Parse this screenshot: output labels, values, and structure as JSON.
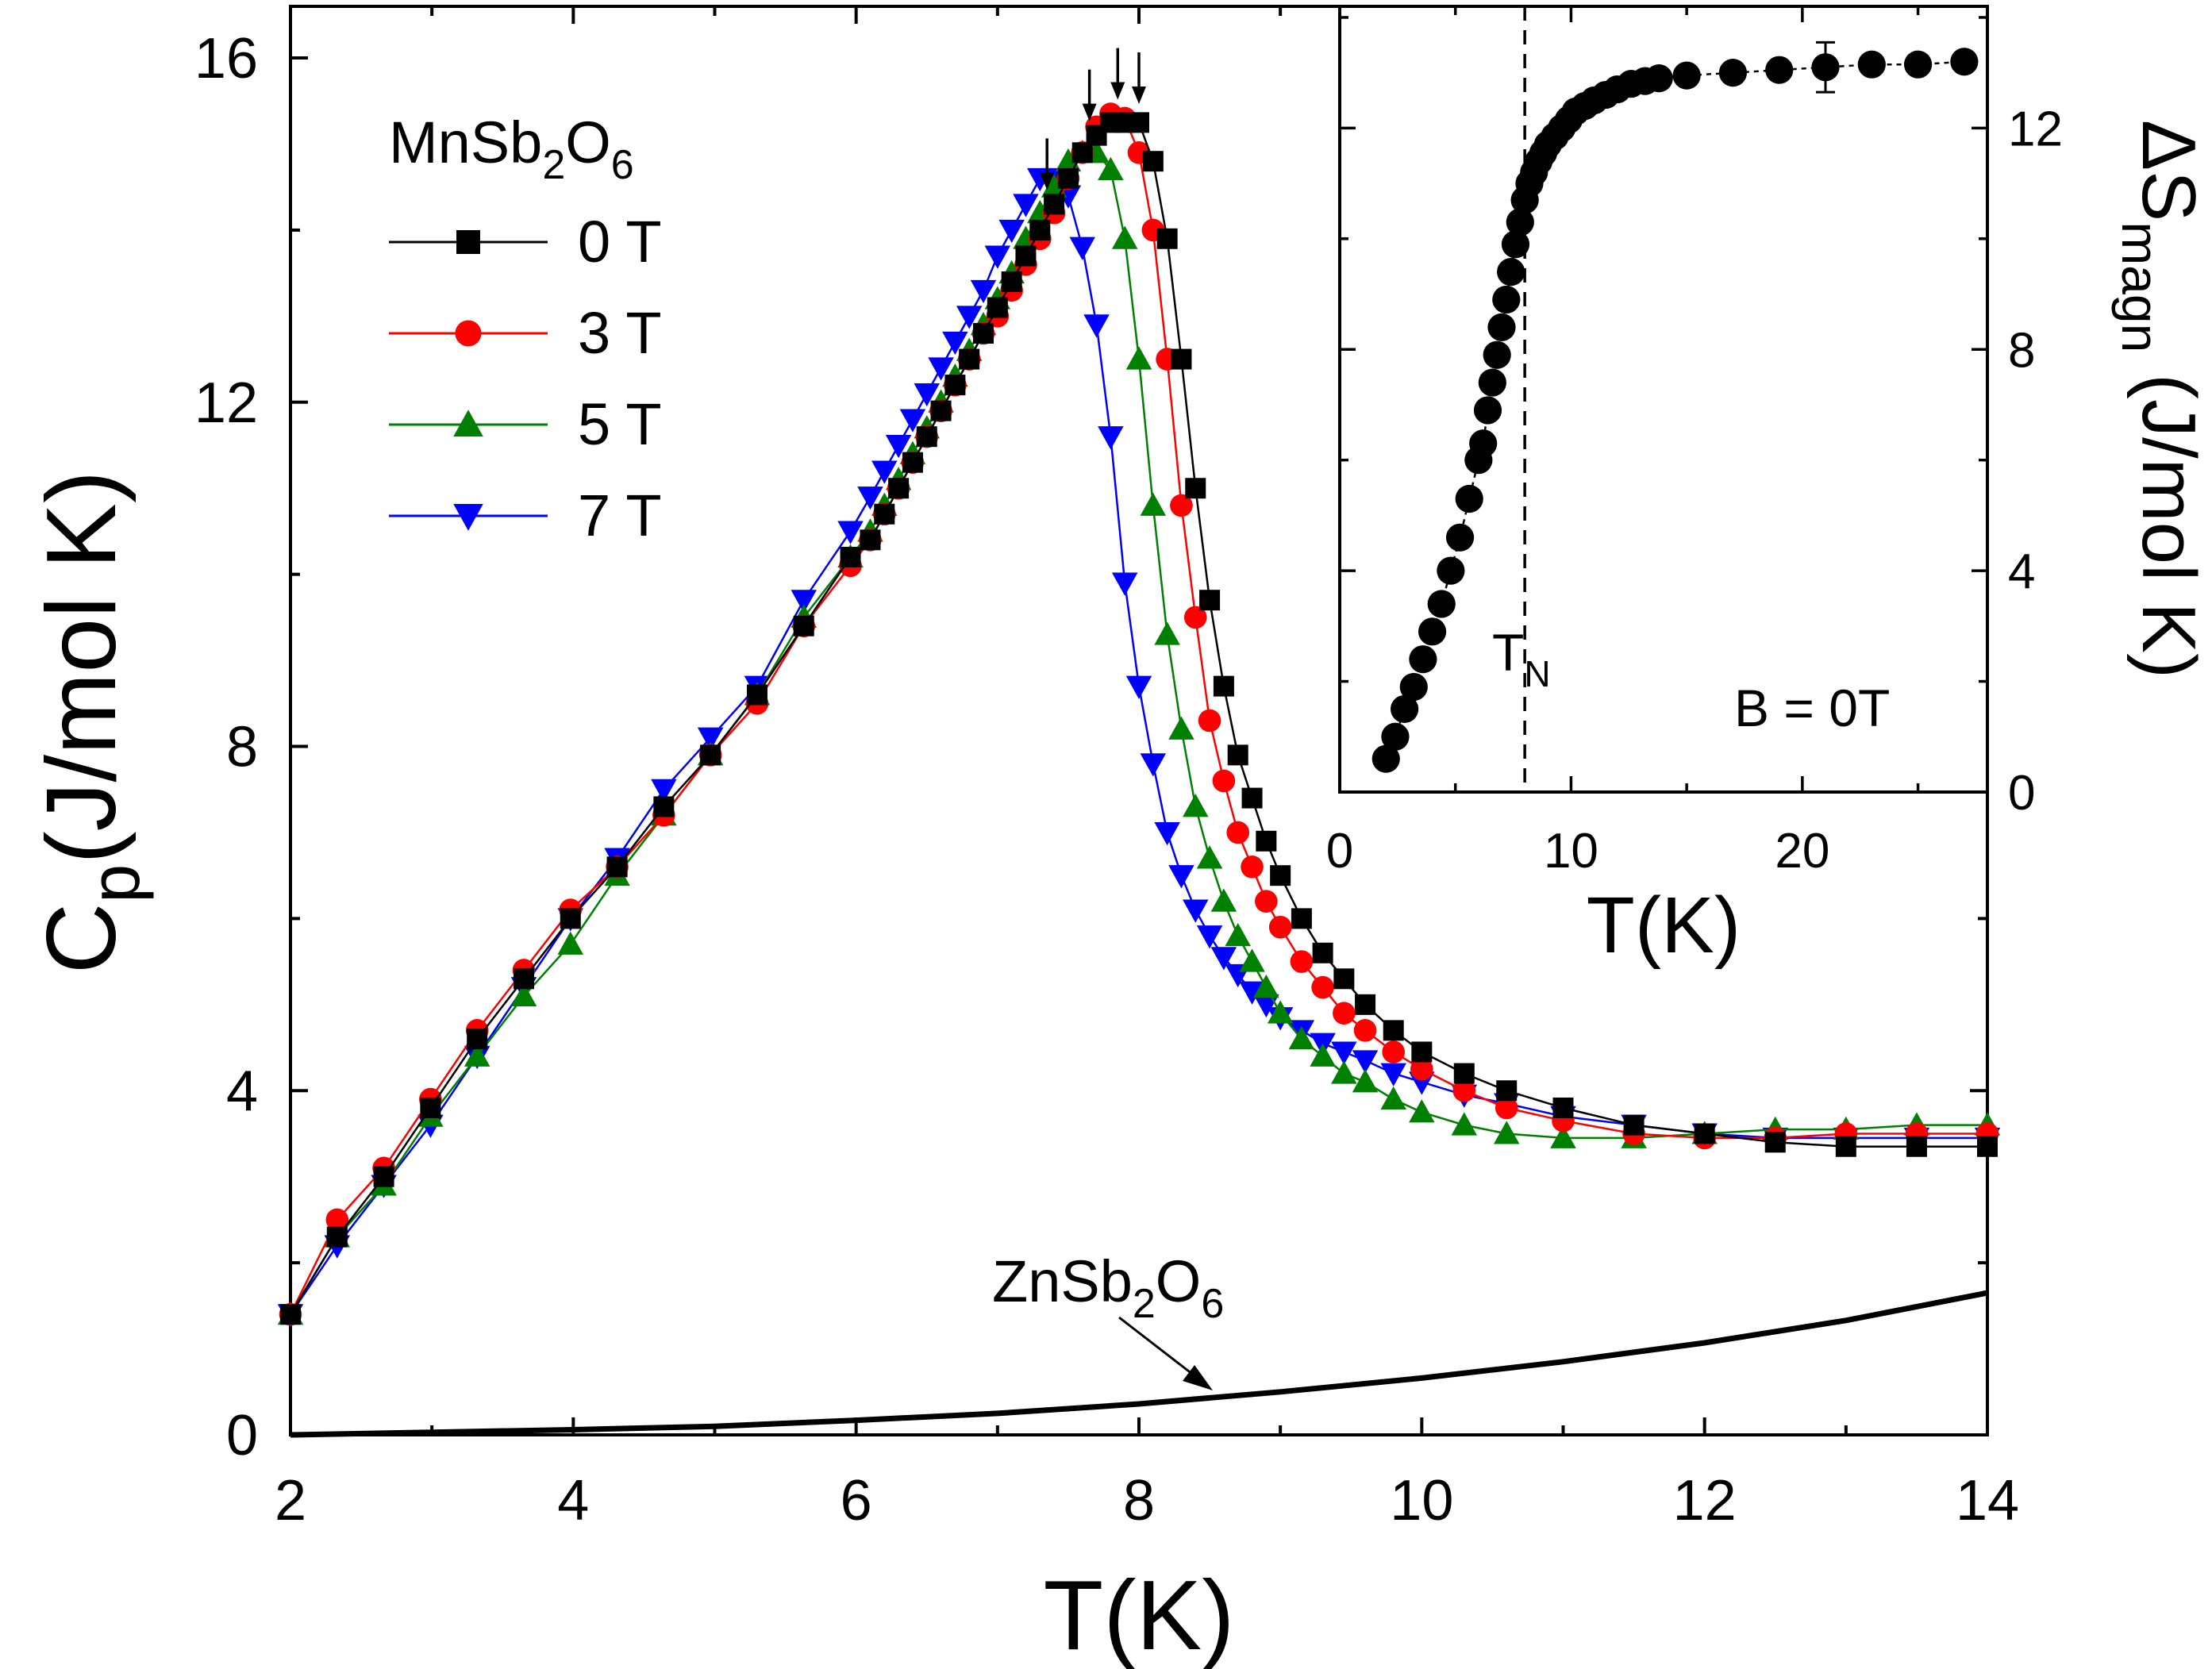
{
  "chart_data": [
    {
      "type": "scatter",
      "title": "",
      "xlabel": "T(K)",
      "ylabel": {
        "base": "C",
        "sub": "p",
        "rest": "(J/mol K)"
      },
      "xlim": [
        2,
        14
      ],
      "ylim": [
        0,
        16.6
      ],
      "xticks": [
        "2",
        "4",
        "6",
        "8",
        "10",
        "12",
        "14"
      ],
      "yticks": [
        "0",
        "4",
        "8",
        "12",
        "16"
      ],
      "legend": {
        "title_parts": [
          "MnSb",
          "2",
          "O",
          "6"
        ],
        "position": "top-left",
        "entries": [
          "0 T",
          "3 T",
          "5 T",
          "7 T"
        ]
      },
      "series": [
        {
          "name": "0 T",
          "color": "#000000",
          "marker": "square",
          "x": [
            2.0,
            2.33,
            2.66,
            2.99,
            3.32,
            3.65,
            3.98,
            4.31,
            4.64,
            4.97,
            5.3,
            5.63,
            5.96,
            6.1,
            6.2,
            6.3,
            6.4,
            6.5,
            6.6,
            6.7,
            6.8,
            6.9,
            7.0,
            7.1,
            7.2,
            7.3,
            7.4,
            7.5,
            7.6,
            7.7,
            7.8,
            7.9,
            8.0,
            8.1,
            8.2,
            8.3,
            8.4,
            8.5,
            8.6,
            8.7,
            8.8,
            8.9,
            9.0,
            9.15,
            9.3,
            9.45,
            9.6,
            9.8,
            10.0,
            10.3,
            10.6,
            11.0,
            11.5,
            12.0,
            12.5,
            13.0,
            13.5,
            14.0
          ],
          "y": [
            1.4,
            2.3,
            3.0,
            3.8,
            4.6,
            5.3,
            6.0,
            6.6,
            7.3,
            7.9,
            8.6,
            9.4,
            10.2,
            10.4,
            10.7,
            11.0,
            11.3,
            11.6,
            11.9,
            12.2,
            12.5,
            12.8,
            13.1,
            13.4,
            13.7,
            14.0,
            14.3,
            14.6,
            14.9,
            15.1,
            15.25,
            15.25,
            15.25,
            14.8,
            13.9,
            12.5,
            11.0,
            9.7,
            8.7,
            7.9,
            7.4,
            6.9,
            6.5,
            6.0,
            5.6,
            5.3,
            5.0,
            4.7,
            4.45,
            4.2,
            4.0,
            3.8,
            3.6,
            3.5,
            3.4,
            3.35,
            3.35,
            3.35
          ]
        },
        {
          "name": "3 T",
          "color": "#ff0000",
          "marker": "circle",
          "x": [
            2.0,
            2.33,
            2.66,
            2.99,
            3.32,
            3.65,
            3.98,
            4.31,
            4.64,
            4.97,
            5.3,
            5.63,
            5.96,
            6.1,
            6.2,
            6.3,
            6.4,
            6.5,
            6.6,
            6.7,
            6.8,
            6.9,
            7.0,
            7.1,
            7.2,
            7.3,
            7.4,
            7.5,
            7.6,
            7.7,
            7.8,
            7.9,
            8.0,
            8.1,
            8.2,
            8.3,
            8.4,
            8.5,
            8.6,
            8.7,
            8.8,
            8.9,
            9.0,
            9.15,
            9.3,
            9.45,
            9.6,
            9.8,
            10.0,
            10.3,
            10.6,
            11.0,
            11.5,
            12.0,
            12.5,
            13.0,
            13.5,
            14.0
          ],
          "y": [
            1.4,
            2.5,
            3.1,
            3.9,
            4.7,
            5.4,
            6.1,
            6.6,
            7.2,
            7.9,
            8.5,
            9.4,
            10.1,
            10.4,
            10.7,
            11.0,
            11.3,
            11.6,
            11.9,
            12.2,
            12.5,
            12.8,
            13.0,
            13.3,
            13.6,
            13.9,
            14.2,
            14.6,
            14.9,
            15.2,
            15.35,
            15.3,
            14.9,
            14.0,
            12.5,
            10.8,
            9.5,
            8.3,
            7.6,
            7.0,
            6.6,
            6.2,
            5.9,
            5.5,
            5.2,
            4.9,
            4.7,
            4.45,
            4.25,
            4.0,
            3.8,
            3.65,
            3.5,
            3.45,
            3.45,
            3.5,
            3.5,
            3.5
          ]
        },
        {
          "name": "5 T",
          "color": "#008000",
          "marker": "triangle-up",
          "x": [
            2.0,
            2.33,
            2.66,
            2.99,
            3.32,
            3.65,
            3.98,
            4.31,
            4.64,
            4.97,
            5.3,
            5.63,
            5.96,
            6.1,
            6.2,
            6.3,
            6.4,
            6.5,
            6.6,
            6.7,
            6.8,
            6.9,
            7.0,
            7.1,
            7.2,
            7.3,
            7.4,
            7.5,
            7.6,
            7.7,
            7.8,
            7.9,
            8.0,
            8.1,
            8.2,
            8.3,
            8.4,
            8.5,
            8.6,
            8.7,
            8.8,
            8.9,
            9.0,
            9.15,
            9.3,
            9.45,
            9.6,
            9.8,
            10.0,
            10.3,
            10.6,
            11.0,
            11.5,
            12.0,
            12.5,
            13.0,
            13.5,
            14.0
          ],
          "y": [
            1.4,
            2.3,
            2.9,
            3.7,
            4.4,
            5.1,
            5.7,
            6.5,
            7.2,
            7.9,
            8.6,
            9.5,
            10.2,
            10.5,
            10.8,
            11.1,
            11.4,
            11.7,
            12.0,
            12.3,
            12.6,
            12.9,
            13.2,
            13.5,
            13.9,
            14.2,
            14.5,
            14.8,
            14.9,
            14.9,
            14.7,
            13.9,
            12.5,
            10.8,
            9.3,
            8.2,
            7.3,
            6.7,
            6.2,
            5.8,
            5.5,
            5.2,
            4.9,
            4.6,
            4.4,
            4.2,
            4.1,
            3.9,
            3.75,
            3.6,
            3.5,
            3.45,
            3.45,
            3.5,
            3.55,
            3.55,
            3.6,
            3.6
          ]
        },
        {
          "name": "7 T",
          "color": "#0000ff",
          "marker": "triangle-down",
          "x": [
            2.0,
            2.33,
            2.66,
            2.99,
            3.32,
            3.65,
            3.98,
            4.31,
            4.64,
            4.97,
            5.3,
            5.63,
            5.96,
            6.1,
            6.2,
            6.3,
            6.4,
            6.5,
            6.6,
            6.7,
            6.8,
            6.9,
            7.0,
            7.1,
            7.2,
            7.3,
            7.4,
            7.5,
            7.6,
            7.7,
            7.8,
            7.9,
            8.0,
            8.1,
            8.2,
            8.3,
            8.4,
            8.5,
            8.6,
            8.7,
            8.8,
            8.9,
            9.0,
            9.15,
            9.3,
            9.45,
            9.6,
            9.8,
            10.0,
            10.3,
            10.6,
            11.0,
            11.5,
            12.0,
            12.5,
            13.0,
            13.5,
            14.0
          ],
          "y": [
            1.4,
            2.2,
            2.9,
            3.6,
            4.4,
            5.2,
            6.0,
            6.7,
            7.5,
            8.1,
            8.7,
            9.7,
            10.5,
            10.9,
            11.2,
            11.5,
            11.8,
            12.1,
            12.4,
            12.7,
            13.0,
            13.3,
            13.7,
            14.0,
            14.3,
            14.6,
            14.6,
            14.4,
            13.8,
            12.9,
            11.6,
            9.9,
            8.7,
            7.8,
            7.0,
            6.5,
            6.1,
            5.8,
            5.55,
            5.35,
            5.15,
            5.0,
            4.85,
            4.7,
            4.55,
            4.45,
            4.35,
            4.2,
            4.1,
            3.95,
            3.85,
            3.7,
            3.6,
            3.5,
            3.45,
            3.45,
            3.45,
            3.45
          ]
        }
      ],
      "reference_curve": {
        "label_parts": [
          "ZnSb",
          "2",
          "O",
          "6"
        ],
        "x": [
          2.0,
          3.0,
          4.0,
          5.0,
          6.0,
          7.0,
          8.0,
          9.0,
          10.0,
          11.0,
          12.0,
          13.0,
          14.0
        ],
        "y": [
          0.0,
          0.03,
          0.06,
          0.1,
          0.17,
          0.25,
          0.36,
          0.5,
          0.66,
          0.85,
          1.07,
          1.33,
          1.65
        ]
      },
      "transition_arrows_at_T": [
        7.35,
        7.65,
        7.85,
        8.0
      ]
    },
    {
      "type": "scatter",
      "title": "",
      "inset": true,
      "xlabel": "T(K)",
      "ylabel": {
        "base": "ΔS",
        "sub": "magn",
        "rest": " (J/mol K)"
      },
      "xlim": [
        0,
        28
      ],
      "ylim": [
        0,
        14.2
      ],
      "xticks": [
        "0",
        "10",
        "20"
      ],
      "yticks": [
        "0",
        "4",
        "8",
        "12"
      ],
      "annotation_TN": {
        "base": "T",
        "sub": "N",
        "value": 8
      },
      "annotation_field": "B = 0T",
      "series": [
        {
          "name": "ΔS_magn",
          "color": "#000000",
          "marker": "circle",
          "x": [
            2.0,
            2.4,
            2.8,
            3.2,
            3.6,
            4.0,
            4.4,
            4.8,
            5.2,
            5.6,
            6.0,
            6.2,
            6.4,
            6.6,
            6.8,
            7.0,
            7.2,
            7.4,
            7.6,
            7.8,
            8.0,
            8.2,
            8.4,
            8.6,
            8.8,
            9.0,
            9.3,
            9.6,
            9.9,
            10.2,
            10.6,
            11.0,
            11.5,
            12.0,
            12.6,
            13.2,
            13.8,
            15.0,
            17.0,
            19.0,
            21.0,
            23.0,
            25.0,
            27.0
          ],
          "y": [
            0.6,
            1.0,
            1.5,
            1.9,
            2.4,
            2.9,
            3.4,
            4.0,
            4.6,
            5.3,
            6.0,
            6.3,
            6.9,
            7.4,
            7.9,
            8.4,
            8.9,
            9.4,
            9.9,
            10.3,
            10.7,
            11.0,
            11.2,
            11.4,
            11.55,
            11.7,
            11.85,
            12.0,
            12.15,
            12.3,
            12.4,
            12.5,
            12.6,
            12.7,
            12.8,
            12.85,
            12.9,
            12.95,
            13.0,
            13.05,
            13.1,
            13.15,
            13.15,
            13.2
          ],
          "error_bar": {
            "x": 21.0,
            "y": 13.1,
            "err": 0.45
          }
        }
      ]
    }
  ]
}
